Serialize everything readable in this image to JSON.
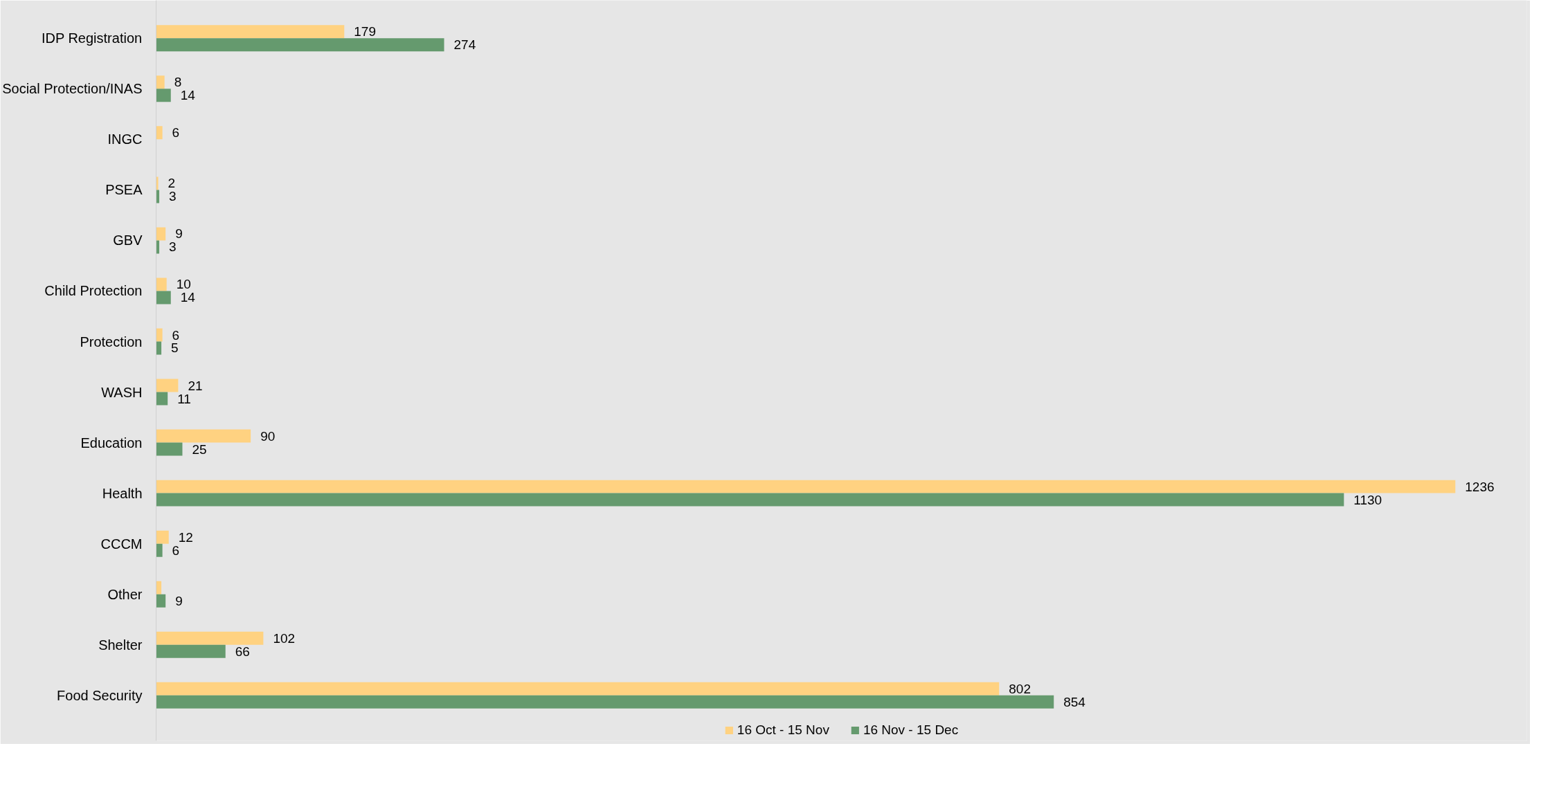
{
  "chart_data": {
    "type": "bar",
    "orientation": "horizontal",
    "legend": "bottom",
    "categories": [
      "IDP Registration",
      "Social Protection/INAS",
      "INGC",
      "PSEA",
      "GBV",
      "Child Protection",
      "Protection",
      "WASH",
      "Education",
      "Health",
      "CCCM",
      "Other",
      "Shelter",
      "Food Security"
    ],
    "series": [
      {
        "name": "16 Oct - 15 Nov",
        "color": "#ffd281",
        "values": [
          179,
          8,
          6,
          2,
          9,
          10,
          6,
          21,
          90,
          1236,
          12,
          5,
          102,
          802
        ],
        "value_labels": [
          "179",
          "8",
          "6",
          "2",
          "9",
          "10",
          "6",
          "21",
          "90",
          "1236",
          "12",
          null,
          "102",
          "802"
        ]
      },
      {
        "name": "16 Nov - 15 Dec",
        "color": "#659a6e",
        "values": [
          274,
          14,
          null,
          3,
          3,
          14,
          5,
          11,
          25,
          1130,
          6,
          9,
          66,
          854
        ],
        "value_labels": [
          "274",
          "14",
          null,
          "3",
          "3",
          "14",
          "5",
          "11",
          "25",
          "1130",
          "6",
          "9",
          "66",
          "854"
        ]
      }
    ]
  }
}
